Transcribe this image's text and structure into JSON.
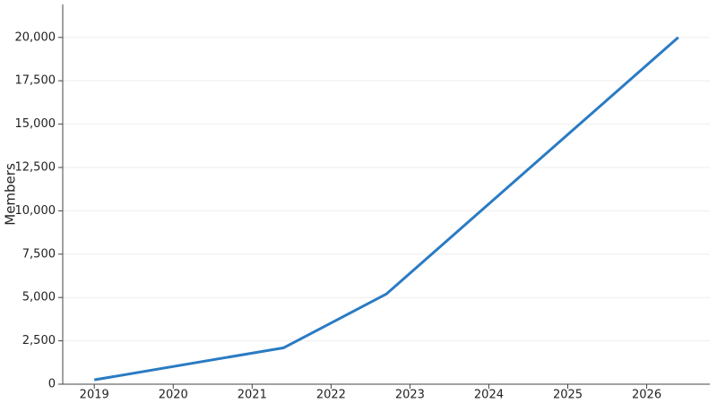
{
  "chart_data": {
    "type": "line",
    "y_label": "Members",
    "x": [
      2019,
      2021.4,
      2022.7,
      2026.4
    ],
    "series": [
      {
        "name": "Members",
        "color": "#2a7bc3",
        "values": [
          250,
          2100,
          5200,
          20000
        ]
      }
    ],
    "xlim": [
      2018.6,
      2026.8
    ],
    "xticks": [
      2019,
      2020,
      2021,
      2022,
      2023,
      2024,
      2025,
      2026
    ],
    "ylim": [
      0,
      21900
    ],
    "yticks": [
      0,
      {
        "value": 2500,
        "label": "2,500"
      },
      {
        "value": 5000,
        "label": "5,000"
      },
      {
        "value": 7500,
        "label": "7,500"
      },
      {
        "value": 10000,
        "label": "10,000"
      },
      {
        "value": 12500,
        "label": "12,500"
      },
      {
        "value": 15000,
        "label": "15,000"
      },
      {
        "value": 17500,
        "label": "17,500"
      },
      {
        "value": 20000,
        "label": "20,000"
      }
    ],
    "grid": true
  }
}
